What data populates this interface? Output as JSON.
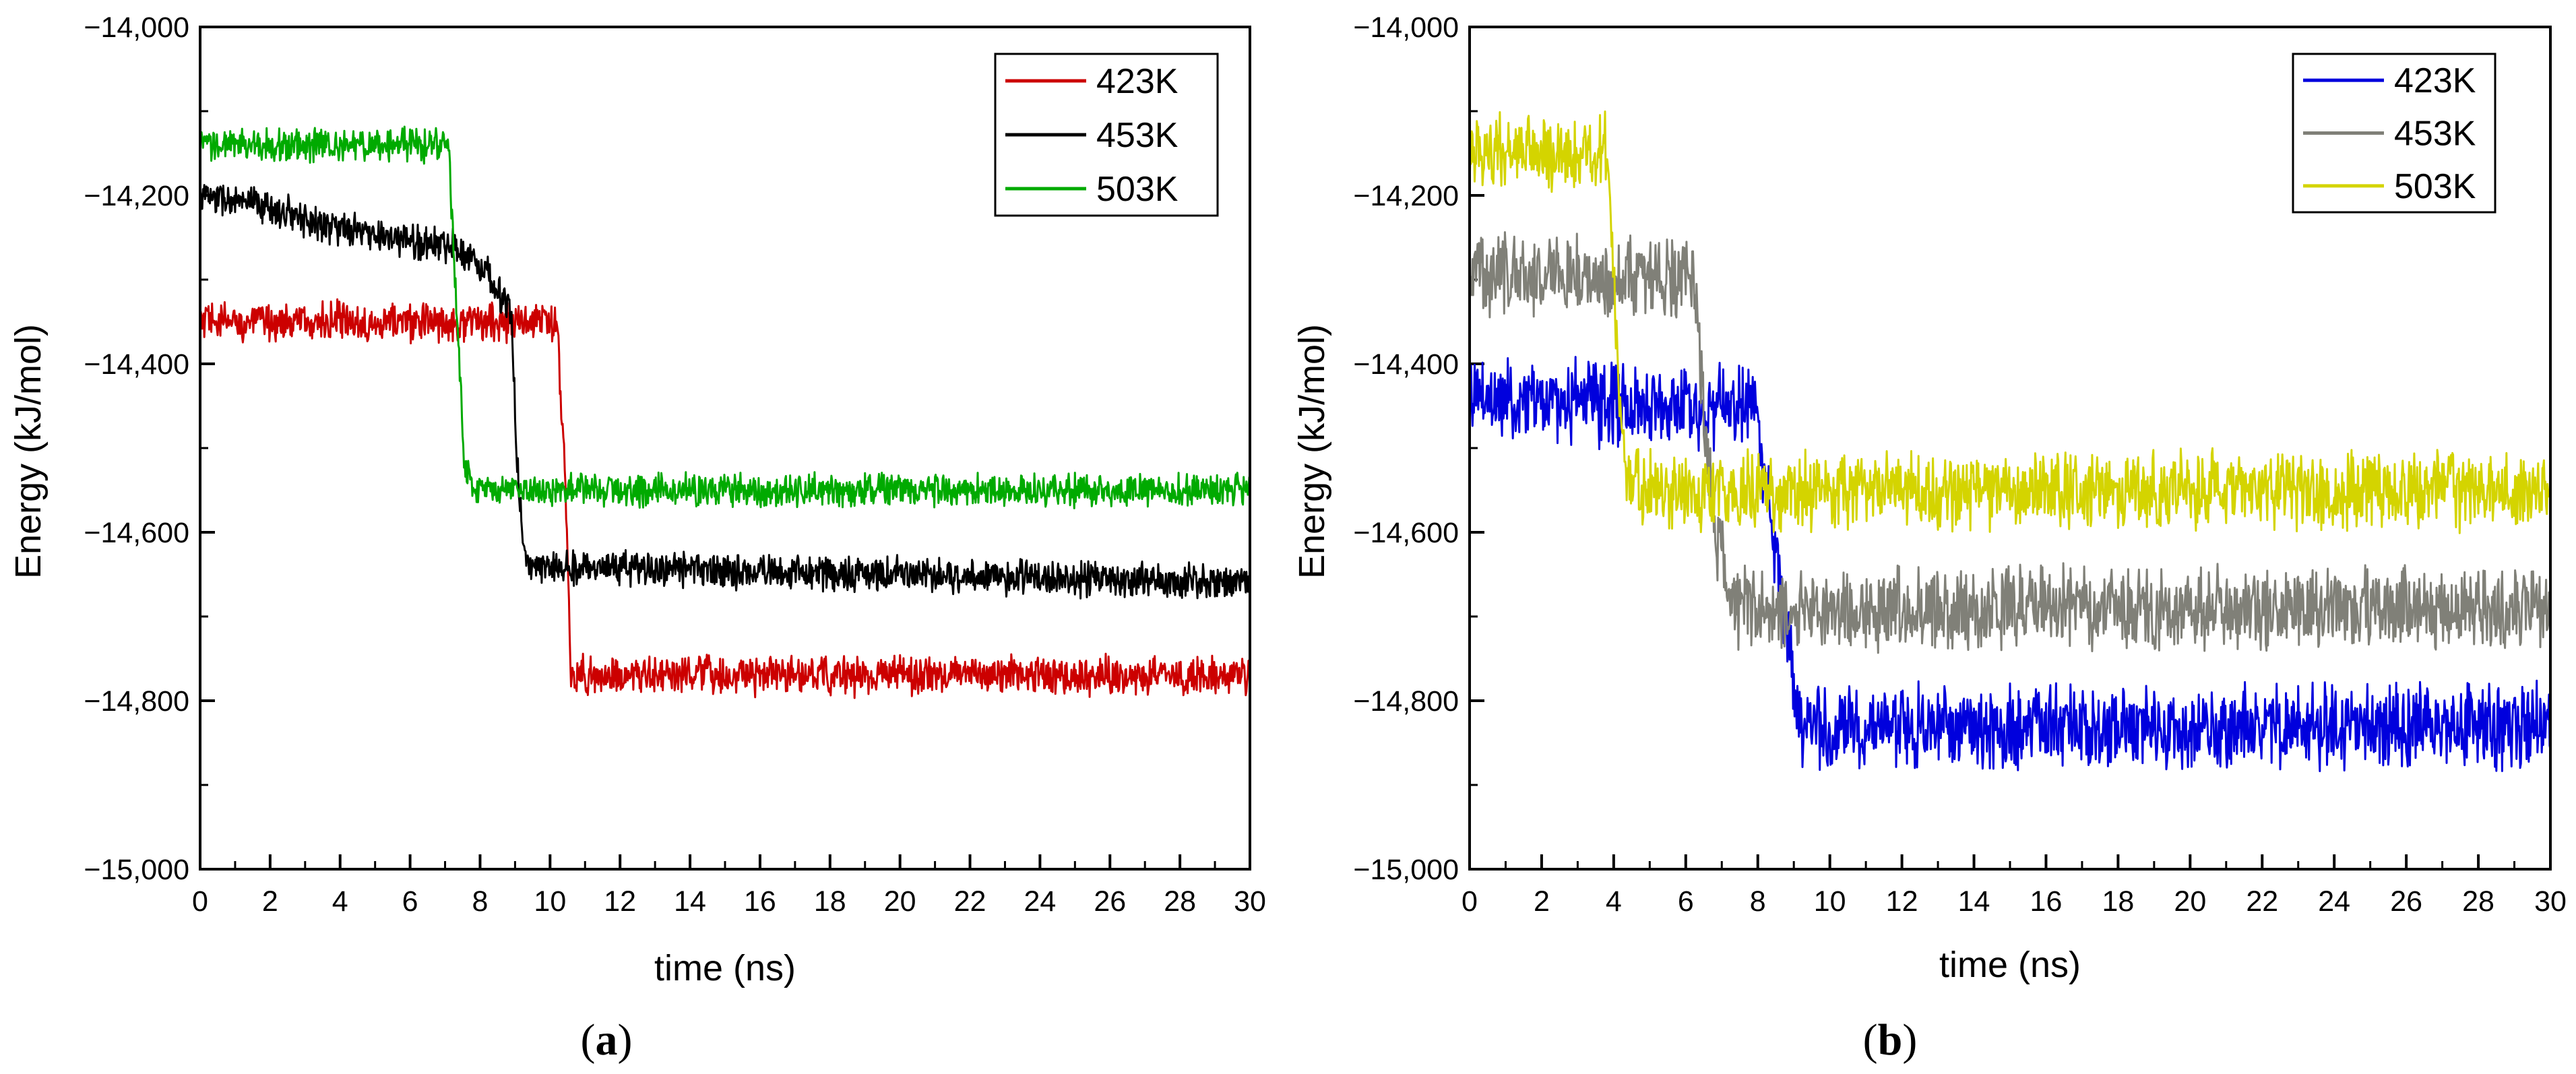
{
  "chart_data": [
    {
      "type": "line",
      "panel_label": "a",
      "panel_open": "(",
      "panel_close": ")",
      "xlabel": "time (ns)",
      "ylabel": "Energy (kJ/mol)",
      "xlim": [
        0,
        30
      ],
      "ylim": [
        -15000,
        -14000
      ],
      "xticks": [
        0,
        2,
        4,
        6,
        8,
        10,
        12,
        14,
        16,
        18,
        20,
        22,
        24,
        26,
        28,
        30
      ],
      "xtick_labels": [
        "0",
        "2",
        "4",
        "6",
        "8",
        "10",
        "12",
        "14",
        "16",
        "18",
        "20",
        "22",
        "24",
        "26",
        "28",
        "30"
      ],
      "yticks": [
        -14000,
        -14200,
        -14400,
        -14600,
        -14800,
        -15000
      ],
      "ytick_labels": [
        "−14,000",
        "−14,200",
        "−14,400",
        "−14,600",
        "−14,800",
        "−15,000"
      ],
      "legend_position": "top-right",
      "series": [
        {
          "name": "423K",
          "color": "#cc0000",
          "noise": 18,
          "x": [
            0,
            10.2,
            10.45,
            10.6,
            30
          ],
          "y": [
            -14350,
            -14350,
            -14560,
            -14770,
            -14770
          ]
        },
        {
          "name": "453K",
          "color": "#000000",
          "noise": 16,
          "x": [
            0,
            2,
            4,
            6,
            7.2,
            8.2,
            8.9,
            9.05,
            9.3,
            30
          ],
          "y": [
            -14200,
            -14215,
            -14240,
            -14255,
            -14258,
            -14290,
            -14340,
            -14520,
            -14640,
            -14660
          ]
        },
        {
          "name": "503K",
          "color": "#00aa00",
          "noise": 15,
          "x": [
            0,
            7.1,
            7.55,
            7.8,
            30
          ],
          "y": [
            -14140,
            -14140,
            -14520,
            -14550,
            -14550
          ]
        }
      ]
    },
    {
      "type": "line",
      "panel_label": "b",
      "panel_open": "(",
      "panel_close": ")",
      "xlabel": "time (ns)",
      "ylabel": "Energy (kJ/mol)",
      "xlim": [
        0,
        30
      ],
      "ylim": [
        -15000,
        -14000
      ],
      "xticks": [
        0,
        2,
        4,
        6,
        8,
        10,
        12,
        14,
        16,
        18,
        20,
        22,
        24,
        26,
        28,
        30
      ],
      "xtick_labels": [
        "0",
        "2",
        "4",
        "6",
        "8",
        "10",
        "12",
        "14",
        "16",
        "18",
        "20",
        "22",
        "24",
        "26",
        "28",
        "30"
      ],
      "yticks": [
        -14000,
        -14200,
        -14400,
        -14600,
        -14800,
        -15000
      ],
      "ytick_labels": [
        "−14,000",
        "−14,200",
        "−14,400",
        "−14,600",
        "−14,800",
        "−15,000"
      ],
      "legend_position": "top-right",
      "series": [
        {
          "name": "423K",
          "color": "#0000dd",
          "noise": 38,
          "x": [
            0,
            7.9,
            8.6,
            9.2,
            30
          ],
          "y": [
            -14440,
            -14450,
            -14650,
            -14830,
            -14830
          ]
        },
        {
          "name": "453K",
          "color": "#808078",
          "noise": 38,
          "x": [
            0,
            6.2,
            6.8,
            7.4,
            30
          ],
          "y": [
            -14290,
            -14300,
            -14600,
            -14690,
            -14690
          ]
        },
        {
          "name": "503K",
          "color": "#d4d400",
          "noise": 35,
          "x": [
            0,
            3.8,
            4.3,
            4.8,
            30
          ],
          "y": [
            -14150,
            -14150,
            -14520,
            -14550,
            -14550
          ]
        }
      ]
    }
  ]
}
